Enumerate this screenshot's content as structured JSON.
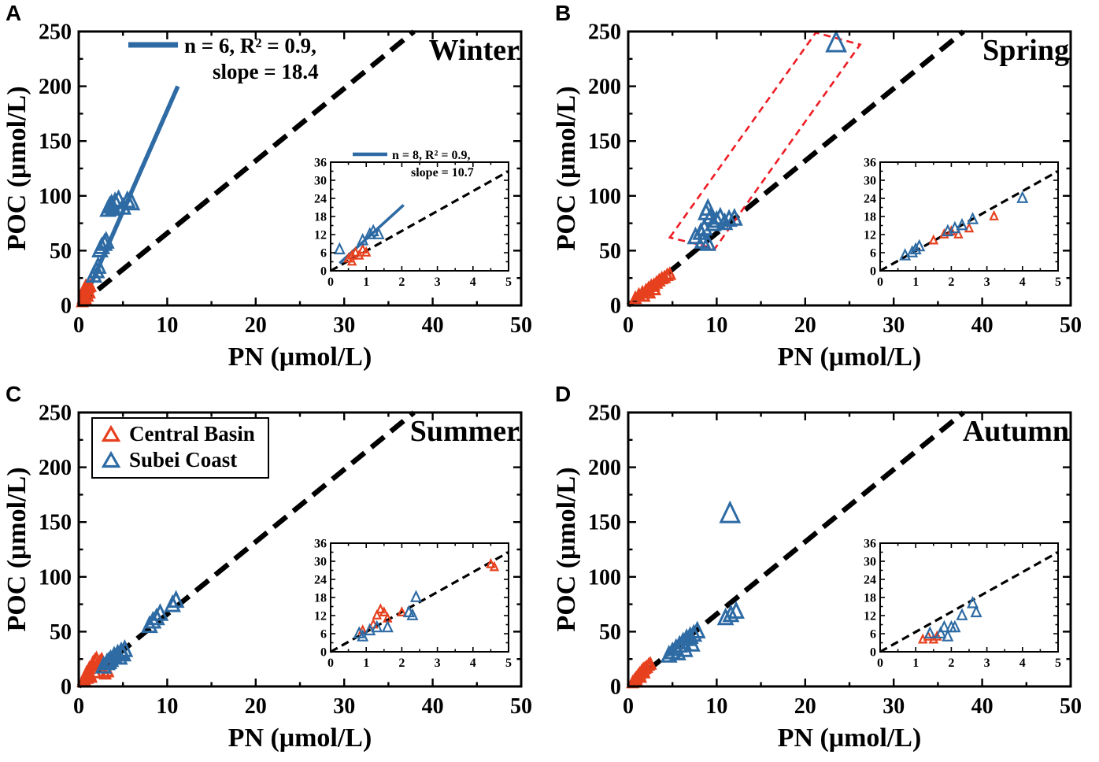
{
  "figure": {
    "xlabel": "PN (μmol/L)",
    "ylabel": "POC (μmol/L)",
    "colors": {
      "central_basin": "#e6401e",
      "subei_coast": "#2e6ba4",
      "regression_line": "#2e6ba4",
      "reference_line": "#000000",
      "outlier_box": "#ee1c25"
    },
    "legend": {
      "location": "panel C upper-left",
      "items": [
        {
          "name": "Central Basin",
          "series": "central_basin",
          "marker": "open-triangle"
        },
        {
          "name": "Subei Coast",
          "series": "subei_coast",
          "marker": "open-triangle"
        }
      ]
    }
  },
  "chart_data": [
    {
      "type": "scatter",
      "panel": "A",
      "title": "Winter",
      "xlabel": "PN (μmol/L)",
      "ylabel": "POC (μmol/L)",
      "xlim": [
        0,
        50
      ],
      "ylim": [
        0,
        250
      ],
      "xticks": [
        0,
        10,
        20,
        30,
        40,
        50
      ],
      "yticks": [
        0,
        50,
        100,
        150,
        200,
        250
      ],
      "reference_line": {
        "style": "dashed",
        "color": "#000000",
        "slope": 6.6,
        "intercept": 0
      },
      "regression": {
        "annotation_line1": "n = 6, R² = 0.9,",
        "annotation_line2": "slope = 18.4",
        "x1": 1.2,
        "y1": 16,
        "x2": 11.2,
        "y2": 200
      },
      "series": [
        {
          "name": "Central Basin",
          "key": "central_basin",
          "points": [
            [
              0.4,
              3
            ],
            [
              0.5,
              6
            ],
            [
              0.6,
              9
            ],
            [
              0.7,
              12
            ],
            [
              0.8,
              5
            ],
            [
              0.9,
              14
            ],
            [
              1.0,
              8
            ],
            [
              1.1,
              16
            ],
            [
              1.2,
              11
            ],
            [
              1.3,
              17
            ],
            [
              0.6,
              14
            ],
            [
              0.8,
              17
            ]
          ]
        },
        {
          "name": "Subei Coast",
          "key": "subei_coast",
          "points": [
            [
              1.7,
              27
            ],
            [
              2.0,
              31
            ],
            [
              2.2,
              35
            ],
            [
              2.4,
              50
            ],
            [
              2.6,
              53
            ],
            [
              2.9,
              56
            ],
            [
              3.1,
              58
            ],
            [
              3.3,
              87
            ],
            [
              3.5,
              90
            ],
            [
              3.7,
              92
            ],
            [
              3.9,
              88
            ],
            [
              4.1,
              94
            ],
            [
              4.5,
              96
            ],
            [
              5.0,
              89
            ],
            [
              5.5,
              95
            ],
            [
              6.0,
              93
            ]
          ]
        }
      ],
      "inset": {
        "xlim": [
          0,
          5
        ],
        "ylim": [
          0,
          36
        ],
        "xticks": [
          0,
          1,
          2,
          3,
          4,
          5
        ],
        "yticks": [
          0,
          6,
          12,
          18,
          24,
          30,
          36
        ],
        "regression": {
          "annotation_line1": "n = 8, R² = 0.9,",
          "annotation_line2": "slope = 10.7",
          "x1": 0.25,
          "y1": 2.5,
          "x2": 2.05,
          "y2": 21.8
        },
        "series": [
          {
            "name": "Central Basin",
            "key": "central_basin",
            "points": [
              [
                0.5,
                4
              ],
              [
                0.6,
                5
              ],
              [
                0.7,
                6
              ],
              [
                0.8,
                5
              ],
              [
                0.9,
                7
              ],
              [
                1.0,
                6
              ],
              [
                0.6,
                3
              ]
            ]
          },
          {
            "name": "Subei Coast",
            "key": "subei_coast",
            "points": [
              [
                0.25,
                7
              ],
              [
                0.9,
                10
              ],
              [
                1.1,
                12
              ],
              [
                1.2,
                13
              ],
              [
                1.35,
                12
              ]
            ]
          }
        ]
      }
    },
    {
      "type": "scatter",
      "panel": "B",
      "title": "Spring",
      "xlabel": "PN (μmol/L)",
      "ylabel": "POC (μmol/L)",
      "xlim": [
        0,
        50
      ],
      "ylim": [
        0,
        250
      ],
      "xticks": [
        0,
        10,
        20,
        30,
        40,
        50
      ],
      "yticks": [
        0,
        50,
        100,
        150,
        200,
        250
      ],
      "reference_line": {
        "style": "dashed",
        "color": "#000000",
        "slope": 6.6,
        "intercept": 0
      },
      "outlier_box": [
        [
          4.7,
          62
        ],
        [
          21.2,
          249
        ],
        [
          26.2,
          238
        ],
        [
          9.8,
          52
        ]
      ],
      "series": [
        {
          "name": "Central Basin",
          "key": "central_basin",
          "points": [
            [
              0.8,
              6
            ],
            [
              1.2,
              9
            ],
            [
              1.6,
              11
            ],
            [
              1.8,
              8
            ],
            [
              2.0,
              13
            ],
            [
              2.3,
              15
            ],
            [
              2.4,
              11
            ],
            [
              2.6,
              17
            ],
            [
              2.9,
              18
            ],
            [
              3.0,
              14
            ],
            [
              3.2,
              20
            ],
            [
              3.5,
              22
            ],
            [
              3.8,
              24
            ],
            [
              4.1,
              25
            ],
            [
              4.4,
              27
            ],
            [
              4.7,
              28
            ]
          ]
        },
        {
          "name": "Subei Coast",
          "key": "subei_coast",
          "points": [
            [
              7.6,
              62
            ],
            [
              8.2,
              66
            ],
            [
              8.4,
              58
            ],
            [
              8.6,
              70
            ],
            [
              8.8,
              84
            ],
            [
              9.0,
              88
            ],
            [
              9.0,
              56
            ],
            [
              9.3,
              80
            ],
            [
              9.6,
              74
            ],
            [
              10.0,
              77
            ],
            [
              10.4,
              80
            ],
            [
              10.9,
              75
            ],
            [
              11.4,
              78
            ],
            [
              12.0,
              79
            ]
          ]
        },
        {
          "name": "Subei Coast (outlier)",
          "key": "subei_coast",
          "emphasis": true,
          "points": [
            [
              23.5,
              239
            ]
          ]
        }
      ],
      "inset": {
        "xlim": [
          0,
          5
        ],
        "ylim": [
          0,
          36
        ],
        "xticks": [
          0,
          1,
          2,
          3,
          4,
          5
        ],
        "yticks": [
          0,
          6,
          12,
          18,
          24,
          30,
          36
        ],
        "series": [
          {
            "name": "Central Basin",
            "key": "central_basin",
            "points": [
              [
                1.5,
                10
              ],
              [
                1.8,
                12
              ],
              [
                2.0,
                13
              ],
              [
                2.2,
                12
              ],
              [
                2.5,
                14
              ],
              [
                3.2,
                18
              ]
            ]
          },
          {
            "name": "Subei Coast",
            "key": "subei_coast",
            "points": [
              [
                0.7,
                5
              ],
              [
                0.9,
                6
              ],
              [
                1.0,
                7
              ],
              [
                1.1,
                8
              ],
              [
                1.9,
                13
              ],
              [
                2.1,
                14
              ],
              [
                2.3,
                15
              ],
              [
                2.6,
                17
              ],
              [
                4.0,
                24
              ]
            ]
          }
        ]
      }
    },
    {
      "type": "scatter",
      "panel": "C",
      "title": "Summer",
      "xlabel": "PN (μmol/L)",
      "ylabel": "POC (μmol/L)",
      "xlim": [
        0,
        50
      ],
      "ylim": [
        0,
        250
      ],
      "xticks": [
        0,
        10,
        20,
        30,
        40,
        50
      ],
      "yticks": [
        0,
        50,
        100,
        150,
        200,
        250
      ],
      "reference_line": {
        "style": "dashed",
        "color": "#000000",
        "slope": 6.6,
        "intercept": 0
      },
      "show_legend": true,
      "series": [
        {
          "name": "Central Basin",
          "key": "central_basin",
          "points": [
            [
              0.5,
              4
            ],
            [
              0.6,
              6
            ],
            [
              0.7,
              5
            ],
            [
              0.8,
              9
            ],
            [
              0.9,
              12
            ],
            [
              1.0,
              7
            ],
            [
              1.1,
              14
            ],
            [
              1.2,
              16
            ],
            [
              1.3,
              10
            ],
            [
              1.4,
              8
            ],
            [
              1.5,
              18
            ],
            [
              1.6,
              21
            ],
            [
              1.8,
              23
            ],
            [
              1.9,
              12
            ],
            [
              2.0,
              25
            ],
            [
              2.2,
              19
            ],
            [
              2.4,
              22
            ],
            [
              2.6,
              24
            ],
            [
              3.0,
              11
            ],
            [
              3.3,
              13
            ]
          ]
        },
        {
          "name": "Subei Coast",
          "key": "subei_coast",
          "points": [
            [
              2.8,
              18
            ],
            [
              3.2,
              21
            ],
            [
              3.4,
              22
            ],
            [
              3.6,
              24
            ],
            [
              4.0,
              27
            ],
            [
              4.4,
              29
            ],
            [
              4.6,
              26
            ],
            [
              4.8,
              31
            ],
            [
              5.0,
              29
            ],
            [
              5.2,
              33
            ],
            [
              8.0,
              55
            ],
            [
              8.4,
              59
            ],
            [
              8.8,
              62
            ],
            [
              9.2,
              66
            ],
            [
              10.6,
              74
            ],
            [
              11.0,
              78
            ]
          ]
        }
      ],
      "inset": {
        "xlim": [
          0,
          5
        ],
        "ylim": [
          0,
          36
        ],
        "xticks": [
          0,
          1,
          2,
          3,
          4,
          5
        ],
        "yticks": [
          0,
          6,
          12,
          18,
          24,
          30,
          36
        ],
        "series": [
          {
            "name": "Central Basin",
            "key": "central_basin",
            "points": [
              [
                0.9,
                7
              ],
              [
                1.2,
                9
              ],
              [
                1.3,
                12
              ],
              [
                1.4,
                14
              ],
              [
                1.5,
                13
              ],
              [
                1.6,
                11
              ],
              [
                2.0,
                13
              ],
              [
                4.5,
                29
              ],
              [
                4.6,
                28
              ]
            ]
          },
          {
            "name": "Subei Coast",
            "key": "subei_coast",
            "points": [
              [
                0.8,
                6
              ],
              [
                0.9,
                5
              ],
              [
                1.1,
                7
              ],
              [
                1.3,
                8
              ],
              [
                1.6,
                8
              ],
              [
                2.2,
                13
              ],
              [
                2.3,
                12
              ],
              [
                2.4,
                18
              ]
            ]
          }
        ]
      }
    },
    {
      "type": "scatter",
      "panel": "D",
      "title": "Autumn",
      "xlabel": "PN (μmol/L)",
      "ylabel": "POC (μmol/L)",
      "xlim": [
        0,
        50
      ],
      "ylim": [
        0,
        250
      ],
      "xticks": [
        0,
        10,
        20,
        30,
        40,
        50
      ],
      "yticks": [
        0,
        50,
        100,
        150,
        200,
        250
      ],
      "reference_line": {
        "style": "dashed",
        "color": "#000000",
        "slope": 6.6,
        "intercept": 0
      },
      "series": [
        {
          "name": "Central Basin",
          "key": "central_basin",
          "points": [
            [
              0.5,
              3
            ],
            [
              0.7,
              5
            ],
            [
              0.9,
              7
            ],
            [
              1.0,
              4
            ],
            [
              1.1,
              9
            ],
            [
              1.3,
              11
            ],
            [
              1.4,
              8
            ],
            [
              1.5,
              13
            ],
            [
              1.7,
              15
            ],
            [
              1.8,
              12
            ],
            [
              1.9,
              16
            ],
            [
              2.1,
              17
            ],
            [
              2.3,
              19
            ],
            [
              2.5,
              20
            ]
          ]
        },
        {
          "name": "Subei Coast",
          "key": "subei_coast",
          "points": [
            [
              4.6,
              28
            ],
            [
              5.0,
              31
            ],
            [
              5.4,
              34
            ],
            [
              5.6,
              30
            ],
            [
              5.8,
              37
            ],
            [
              6.2,
              40
            ],
            [
              6.4,
              33
            ],
            [
              6.6,
              43
            ],
            [
              7.0,
              45
            ],
            [
              7.2,
              38
            ],
            [
              7.4,
              47
            ],
            [
              7.8,
              50
            ],
            [
              11.0,
              62
            ],
            [
              11.6,
              65
            ],
            [
              12.2,
              68
            ]
          ]
        },
        {
          "name": "Subei Coast (outlier)",
          "key": "subei_coast",
          "emphasis": true,
          "points": [
            [
              11.5,
              157
            ]
          ]
        }
      ],
      "inset": {
        "xlim": [
          0,
          5
        ],
        "ylim": [
          0,
          36
        ],
        "xticks": [
          0,
          1,
          2,
          3,
          4,
          5
        ],
        "yticks": [
          0,
          6,
          12,
          18,
          24,
          30,
          36
        ],
        "series": [
          {
            "name": "Central Basin",
            "key": "central_basin",
            "points": [
              [
                1.2,
                4
              ],
              [
                1.35,
                5
              ],
              [
                1.5,
                4
              ],
              [
                1.6,
                5
              ]
            ]
          },
          {
            "name": "Subei Coast",
            "key": "subei_coast",
            "points": [
              [
                1.4,
                6
              ],
              [
                1.7,
                6
              ],
              [
                1.8,
                8
              ],
              [
                1.9,
                5
              ],
              [
                2.0,
                8
              ],
              [
                2.1,
                8
              ],
              [
                2.3,
                12
              ],
              [
                2.6,
                16
              ],
              [
                2.7,
                13
              ]
            ]
          }
        ]
      }
    }
  ]
}
